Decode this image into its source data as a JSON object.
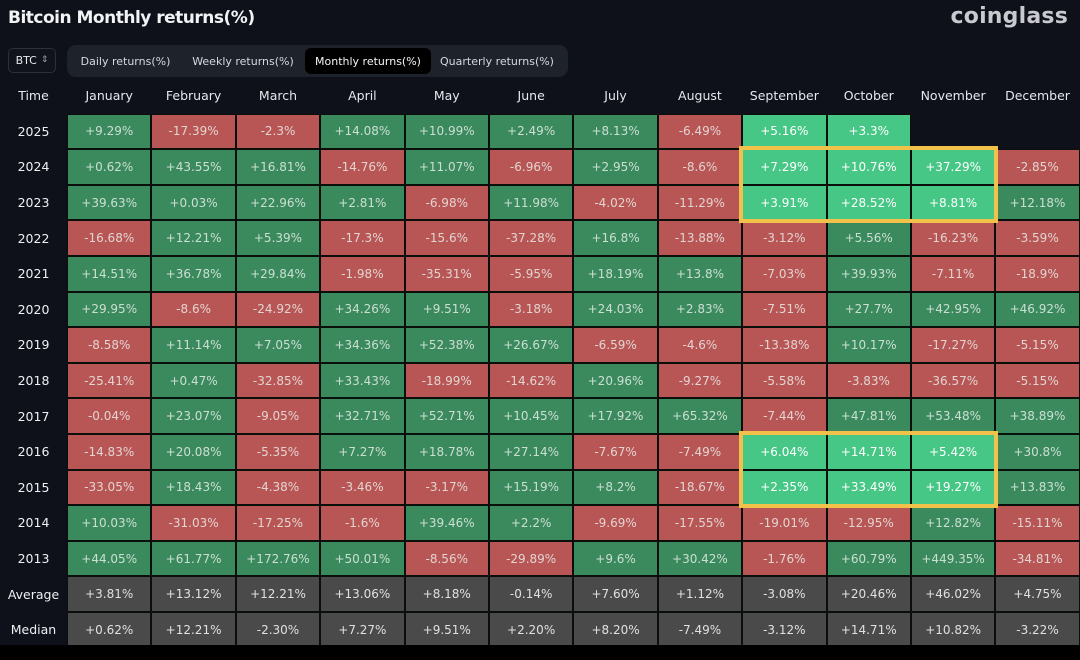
{
  "header": {
    "title": "Bitcoin Monthly returns(%)",
    "brand": "coinglass"
  },
  "controls": {
    "coin_selector": {
      "value": "BTC",
      "icon": "up-down-chevron-icon"
    },
    "tabs": [
      {
        "label": "Daily returns(%)",
        "active": false
      },
      {
        "label": "Weekly returns(%)",
        "active": false
      },
      {
        "label": "Monthly returns(%)",
        "active": true
      },
      {
        "label": "Quarterly returns(%)",
        "active": false
      }
    ]
  },
  "colors": {
    "positive": "#3a8a5d",
    "negative": "#b85656",
    "highlighted_positive": "#46c786",
    "stat_row": "#4a4a4a",
    "highlight_border": "#f2c14a",
    "background": "#0e111a"
  },
  "chart_data": {
    "type": "heatmap",
    "title": "Bitcoin Monthly returns(%)",
    "xlabel": "",
    "ylabel": "Time",
    "corner_label": "Time",
    "columns": [
      "January",
      "February",
      "March",
      "April",
      "May",
      "June",
      "July",
      "August",
      "September",
      "October",
      "November",
      "December"
    ],
    "rows": [
      {
        "label": "2025",
        "values": [
          "+9.29%",
          "-17.39%",
          "-2.3%",
          "+14.08%",
          "+10.99%",
          "+2.49%",
          "+8.13%",
          "-6.49%",
          "+5.16%",
          "+3.3%",
          null,
          null
        ]
      },
      {
        "label": "2024",
        "values": [
          "+0.62%",
          "+43.55%",
          "+16.81%",
          "-14.76%",
          "+11.07%",
          "-6.96%",
          "+2.95%",
          "-8.6%",
          "+7.29%",
          "+10.76%",
          "+37.29%",
          "-2.85%"
        ]
      },
      {
        "label": "2023",
        "values": [
          "+39.63%",
          "+0.03%",
          "+22.96%",
          "+2.81%",
          "-6.98%",
          "+11.98%",
          "-4.02%",
          "-11.29%",
          "+3.91%",
          "+28.52%",
          "+8.81%",
          "+12.18%"
        ]
      },
      {
        "label": "2022",
        "values": [
          "-16.68%",
          "+12.21%",
          "+5.39%",
          "-17.3%",
          "-15.6%",
          "-37.28%",
          "+16.8%",
          "-13.88%",
          "-3.12%",
          "+5.56%",
          "-16.23%",
          "-3.59%"
        ]
      },
      {
        "label": "2021",
        "values": [
          "+14.51%",
          "+36.78%",
          "+29.84%",
          "-1.98%",
          "-35.31%",
          "-5.95%",
          "+18.19%",
          "+13.8%",
          "-7.03%",
          "+39.93%",
          "-7.11%",
          "-18.9%"
        ]
      },
      {
        "label": "2020",
        "values": [
          "+29.95%",
          "-8.6%",
          "-24.92%",
          "+34.26%",
          "+9.51%",
          "-3.18%",
          "+24.03%",
          "+2.83%",
          "-7.51%",
          "+27.7%",
          "+42.95%",
          "+46.92%"
        ]
      },
      {
        "label": "2019",
        "values": [
          "-8.58%",
          "+11.14%",
          "+7.05%",
          "+34.36%",
          "+52.38%",
          "+26.67%",
          "-6.59%",
          "-4.6%",
          "-13.38%",
          "+10.17%",
          "-17.27%",
          "-5.15%"
        ]
      },
      {
        "label": "2018",
        "values": [
          "-25.41%",
          "+0.47%",
          "-32.85%",
          "+33.43%",
          "-18.99%",
          "-14.62%",
          "+20.96%",
          "-9.27%",
          "-5.58%",
          "-3.83%",
          "-36.57%",
          "-5.15%"
        ]
      },
      {
        "label": "2017",
        "values": [
          "-0.04%",
          "+23.07%",
          "-9.05%",
          "+32.71%",
          "+52.71%",
          "+10.45%",
          "+17.92%",
          "+65.32%",
          "-7.44%",
          "+47.81%",
          "+53.48%",
          "+38.89%"
        ]
      },
      {
        "label": "2016",
        "values": [
          "-14.83%",
          "+20.08%",
          "-5.35%",
          "+7.27%",
          "+18.78%",
          "+27.14%",
          "-7.67%",
          "-7.49%",
          "+6.04%",
          "+14.71%",
          "+5.42%",
          "+30.8%"
        ]
      },
      {
        "label": "2015",
        "values": [
          "-33.05%",
          "+18.43%",
          "-4.38%",
          "-3.46%",
          "-3.17%",
          "+15.19%",
          "+8.2%",
          "-18.67%",
          "+2.35%",
          "+33.49%",
          "+19.27%",
          "+13.83%"
        ]
      },
      {
        "label": "2014",
        "values": [
          "+10.03%",
          "-31.03%",
          "-17.25%",
          "-1.6%",
          "+39.46%",
          "+2.2%",
          "-9.69%",
          "-17.55%",
          "-19.01%",
          "-12.95%",
          "+12.82%",
          "-15.11%"
        ]
      },
      {
        "label": "2013",
        "values": [
          "+44.05%",
          "+61.77%",
          "+172.76%",
          "+50.01%",
          "-8.56%",
          "-29.89%",
          "+9.6%",
          "+30.42%",
          "-1.76%",
          "+60.79%",
          "+449.35%",
          "-34.81%"
        ]
      }
    ],
    "stats": [
      {
        "label": "Average",
        "values": [
          "+3.81%",
          "+13.12%",
          "+12.21%",
          "+13.06%",
          "+8.18%",
          "-0.14%",
          "+7.60%",
          "+1.12%",
          "-3.08%",
          "+20.46%",
          "+46.02%",
          "+4.75%"
        ]
      },
      {
        "label": "Median",
        "values": [
          "+0.62%",
          "+12.21%",
          "-2.30%",
          "+7.27%",
          "+9.51%",
          "+2.20%",
          "+8.20%",
          "-7.49%",
          "-3.12%",
          "+14.71%",
          "+10.82%",
          "-3.22%"
        ]
      }
    ],
    "highlighted_cells": [
      {
        "row": "2025",
        "columns": [
          "September",
          "October"
        ]
      }
    ],
    "annotations": [
      {
        "type": "box",
        "rows": [
          "2024",
          "2023"
        ],
        "columns": [
          "September",
          "October",
          "November"
        ]
      },
      {
        "type": "box",
        "rows": [
          "2016",
          "2015"
        ],
        "columns": [
          "September",
          "October",
          "November"
        ]
      }
    ],
    "grid": true,
    "legend": "none"
  }
}
